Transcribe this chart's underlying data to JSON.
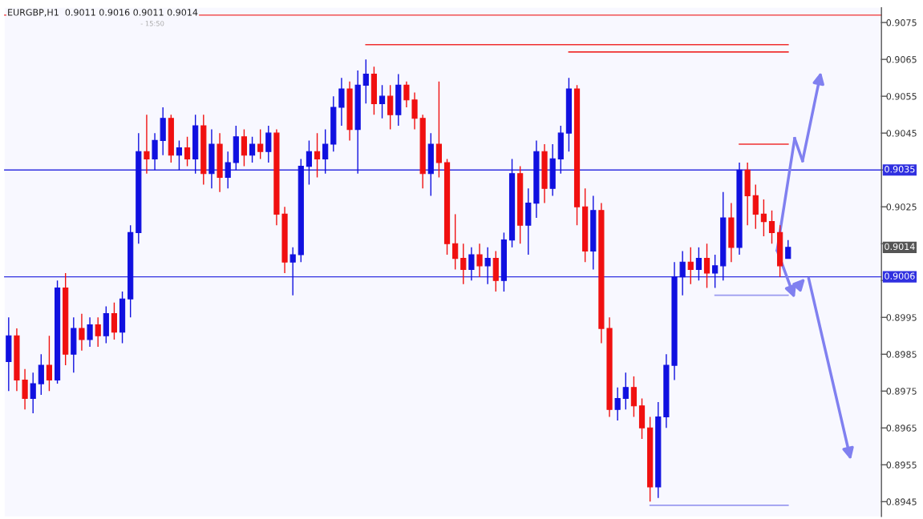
{
  "chart_data": {
    "type": "candlestick",
    "title": "EURGBP,H1  0.9011 0.9016 0.9011 0.9014",
    "categories": [
      null,
      null,
      null,
      null,
      null,
      null,
      null,
      null,
      null,
      null,
      null,
      null,
      null,
      null,
      null,
      null,
      null,
      null,
      null,
      null,
      null,
      null,
      null,
      null,
      null,
      null,
      null,
      null,
      null,
      null,
      null,
      null,
      null,
      null,
      null,
      null,
      null,
      null,
      null,
      null,
      null,
      null,
      null,
      null,
      null,
      null,
      null,
      null,
      null,
      null,
      null,
      null,
      null,
      null,
      null,
      null,
      null,
      null,
      null,
      null,
      null,
      null,
      null,
      null,
      null,
      null,
      null,
      null,
      null,
      null,
      null,
      null,
      null,
      null,
      null,
      null,
      null,
      null,
      null,
      null,
      null,
      null,
      null,
      null,
      null,
      null,
      null,
      null,
      null,
      null,
      null,
      null,
      null,
      null,
      null,
      null,
      null,
      null,
      null,
      null,
      null,
      null,
      null,
      null,
      null,
      null,
      null,
      null
    ],
    "ohlc": [
      [
        0.8983,
        0.8995,
        0.8975,
        0.899
      ],
      [
        0.899,
        0.8992,
        0.8975,
        0.8978
      ],
      [
        0.8978,
        0.8981,
        0.897,
        0.8973
      ],
      [
        0.8973,
        0.898,
        0.8969,
        0.8977
      ],
      [
        0.8977,
        0.8985,
        0.8974,
        0.8982
      ],
      [
        0.8982,
        0.899,
        0.8975,
        0.8978
      ],
      [
        0.8978,
        0.9005,
        0.8977,
        0.9003
      ],
      [
        0.9003,
        0.9007,
        0.8982,
        0.8985
      ],
      [
        0.8985,
        0.8995,
        0.898,
        0.8992
      ],
      [
        0.8992,
        0.8996,
        0.8986,
        0.8989
      ],
      [
        0.8989,
        0.8995,
        0.8987,
        0.8993
      ],
      [
        0.8993,
        0.8995,
        0.8987,
        0.899
      ],
      [
        0.899,
        0.8998,
        0.8988,
        0.8996
      ],
      [
        0.8996,
        0.8999,
        0.8989,
        0.8991
      ],
      [
        0.8991,
        0.9002,
        0.8988,
        0.9
      ],
      [
        0.9,
        0.902,
        0.8995,
        0.9018
      ],
      [
        0.9018,
        0.9045,
        0.9015,
        0.904
      ],
      [
        0.904,
        0.905,
        0.9034,
        0.9038
      ],
      [
        0.9038,
        0.9045,
        0.9035,
        0.9043
      ],
      [
        0.9043,
        0.9052,
        0.9039,
        0.9049
      ],
      [
        0.9049,
        0.905,
        0.9037,
        0.9039
      ],
      [
        0.9039,
        0.9043,
        0.9035,
        0.9041
      ],
      [
        0.9041,
        0.9044,
        0.9036,
        0.9038
      ],
      [
        0.9038,
        0.905,
        0.9034,
        0.9047
      ],
      [
        0.9047,
        0.905,
        0.9031,
        0.9034
      ],
      [
        0.9034,
        0.9046,
        0.903,
        0.9042
      ],
      [
        0.9042,
        0.9045,
        0.9029,
        0.9033
      ],
      [
        0.9033,
        0.904,
        0.903,
        0.9037
      ],
      [
        0.9037,
        0.9047,
        0.9035,
        0.9044
      ],
      [
        0.9044,
        0.9046,
        0.9036,
        0.9039
      ],
      [
        0.9039,
        0.9044,
        0.9037,
        0.9042
      ],
      [
        0.9042,
        0.9046,
        0.9038,
        0.904
      ],
      [
        0.904,
        0.9047,
        0.9037,
        0.9045
      ],
      [
        0.9045,
        0.9046,
        0.902,
        0.9023
      ],
      [
        0.9023,
        0.9025,
        0.9007,
        0.901
      ],
      [
        0.901,
        0.9014,
        0.9001,
        0.9012
      ],
      [
        0.9012,
        0.9038,
        0.901,
        0.9036
      ],
      [
        0.9036,
        0.9043,
        0.9031,
        0.904
      ],
      [
        0.904,
        0.9045,
        0.9033,
        0.9038
      ],
      [
        0.9038,
        0.9046,
        0.9034,
        0.9042
      ],
      [
        0.9042,
        0.9055,
        0.904,
        0.9052
      ],
      [
        0.9052,
        0.906,
        0.9047,
        0.9057
      ],
      [
        0.9057,
        0.9059,
        0.9043,
        0.9046
      ],
      [
        0.9046,
        0.9062,
        0.9034,
        0.9058
      ],
      [
        0.9058,
        0.9065,
        0.9053,
        0.9061
      ],
      [
        0.9061,
        0.9063,
        0.905,
        0.9053
      ],
      [
        0.9053,
        0.9058,
        0.9049,
        0.9055
      ],
      [
        0.9055,
        0.9058,
        0.9046,
        0.905
      ],
      [
        0.905,
        0.9061,
        0.9047,
        0.9058
      ],
      [
        0.9058,
        0.9059,
        0.9052,
        0.9054
      ],
      [
        0.9054,
        0.9056,
        0.9046,
        0.9049
      ],
      [
        0.9049,
        0.905,
        0.903,
        0.9034
      ],
      [
        0.9034,
        0.9045,
        0.9028,
        0.9042
      ],
      [
        0.9042,
        0.9059,
        0.9033,
        0.9037
      ],
      [
        0.9037,
        0.9038,
        0.9012,
        0.9015
      ],
      [
        0.9015,
        0.9023,
        0.9008,
        0.9011
      ],
      [
        0.9011,
        0.9015,
        0.9004,
        0.9008
      ],
      [
        0.9008,
        0.9014,
        0.9005,
        0.9012
      ],
      [
        0.9012,
        0.9015,
        0.9006,
        0.9009
      ],
      [
        0.9009,
        0.9014,
        0.9004,
        0.9011
      ],
      [
        0.9011,
        0.9013,
        0.9002,
        0.9005
      ],
      [
        0.9005,
        0.9018,
        0.9002,
        0.9016
      ],
      [
        0.9016,
        0.9038,
        0.9014,
        0.9034
      ],
      [
        0.9034,
        0.9036,
        0.9015,
        0.902
      ],
      [
        0.902,
        0.903,
        0.9012,
        0.9026
      ],
      [
        0.9026,
        0.9043,
        0.9022,
        0.904
      ],
      [
        0.904,
        0.9042,
        0.9026,
        0.903
      ],
      [
        0.903,
        0.9042,
        0.9028,
        0.9038
      ],
      [
        0.9038,
        0.9047,
        0.9034,
        0.9045
      ],
      [
        0.9045,
        0.906,
        0.904,
        0.9057
      ],
      [
        0.9057,
        0.9058,
        0.902,
        0.9025
      ],
      [
        0.9025,
        0.903,
        0.901,
        0.9013
      ],
      [
        0.9013,
        0.9028,
        0.9008,
        0.9024
      ],
      [
        0.9024,
        0.9026,
        0.8988,
        0.8992
      ],
      [
        0.8992,
        0.8995,
        0.8968,
        0.897
      ],
      [
        0.897,
        0.8976,
        0.8967,
        0.8973
      ],
      [
        0.8973,
        0.898,
        0.897,
        0.8976
      ],
      [
        0.8976,
        0.8979,
        0.8968,
        0.8971
      ],
      [
        0.8971,
        0.8973,
        0.8962,
        0.8965
      ],
      [
        0.8965,
        0.8968,
        0.8945,
        0.8949
      ],
      [
        0.8949,
        0.8972,
        0.8946,
        0.8968
      ],
      [
        0.8968,
        0.8985,
        0.8965,
        0.8982
      ],
      [
        0.8982,
        0.901,
        0.8978,
        0.9006
      ],
      [
        0.9006,
        0.9013,
        0.9001,
        0.901
      ],
      [
        0.901,
        0.9014,
        0.9004,
        0.9008
      ],
      [
        0.9008,
        0.9014,
        0.9005,
        0.9011
      ],
      [
        0.9011,
        0.9015,
        0.9003,
        0.9007
      ],
      [
        0.9007,
        0.9012,
        0.9003,
        0.9009
      ],
      [
        0.9009,
        0.9029,
        0.9005,
        0.9022
      ],
      [
        0.9022,
        0.9026,
        0.901,
        0.9014
      ],
      [
        0.9014,
        0.9037,
        0.9012,
        0.9035
      ],
      [
        0.9035,
        0.9037,
        0.902,
        0.9028
      ],
      [
        0.9028,
        0.9031,
        0.9019,
        0.9023
      ],
      [
        0.9023,
        0.9027,
        0.9017,
        0.9021
      ],
      [
        0.9021,
        0.9024,
        0.9015,
        0.9018
      ],
      [
        0.9018,
        0.902,
        0.9006,
        0.9009
      ],
      [
        0.9011,
        0.9016,
        0.9011,
        0.9014
      ],
      null,
      null,
      null,
      null,
      null,
      null,
      null,
      null,
      null,
      null,
      null
    ],
    "colors": [
      "#1010e0",
      "#f01010",
      "#f01010",
      "#1010e0",
      "#1010e0",
      "#f01010",
      "#1010e0",
      "#f01010",
      "#1010e0",
      "#f01010",
      "#1010e0",
      "#f01010",
      "#1010e0",
      "#f01010",
      "#1010e0",
      "#1010e0",
      "#1010e0",
      "#f01010",
      "#1010e0",
      "#1010e0",
      "#f01010",
      "#1010e0",
      "#f01010",
      "#1010e0",
      "#f01010",
      "#1010e0",
      "#f01010",
      "#1010e0",
      "#1010e0",
      "#f01010",
      "#1010e0",
      "#f01010",
      "#1010e0",
      "#f01010",
      "#f01010",
      "#1010e0",
      "#1010e0",
      "#1010e0",
      "#f01010",
      "#1010e0",
      "#1010e0",
      "#1010e0",
      "#f01010",
      "#1010e0",
      "#1010e0",
      "#f01010",
      "#1010e0",
      "#f01010",
      "#1010e0",
      "#f01010",
      "#f01010",
      "#f01010",
      "#1010e0",
      "#f01010",
      "#f01010",
      "#f01010",
      "#f01010",
      "#1010e0",
      "#f01010",
      "#1010e0",
      "#f01010",
      "#1010e0",
      "#1010e0",
      "#f01010",
      "#1010e0",
      "#1010e0",
      "#f01010",
      "#1010e0",
      "#1010e0",
      "#1010e0",
      "#f01010",
      "#f01010",
      "#1010e0",
      "#f01010",
      "#f01010",
      "#1010e0",
      "#1010e0",
      "#f01010",
      "#f01010",
      "#f01010",
      "#1010e0",
      "#1010e0",
      "#1010e0",
      "#1010e0",
      "#f01010",
      "#1010e0",
      "#f01010",
      "#1010e0",
      "#1010e0",
      "#f01010",
      "#1010e0",
      "#f01010",
      "#f01010",
      "#f01010",
      "#f01010",
      "#f01010",
      "#1010e0",
      null,
      null,
      null,
      null,
      null,
      null,
      null,
      null,
      null,
      null,
      null
    ],
    "series": [
      {
        "type": "line",
        "color": "#f03030",
        "values": [
          null,
          null,
          null,
          null,
          null,
          null,
          null,
          null,
          null,
          null,
          null,
          null,
          null,
          null,
          null,
          null,
          null,
          null,
          null,
          null,
          null,
          null,
          null,
          null,
          null,
          null,
          null,
          null,
          null,
          null,
          null,
          null,
          null,
          null,
          null,
          null,
          null,
          null,
          null,
          null,
          null,
          null,
          null,
          null,
          0.9069,
          0.9069,
          0.9069,
          0.9069,
          0.9069,
          0.9069,
          0.9069,
          0.9069,
          0.9069,
          0.9069,
          0.9069,
          0.9069,
          0.9069,
          0.9069,
          0.9069,
          0.9069,
          0.9069,
          0.9069,
          0.9069,
          0.9069,
          0.9069,
          0.9069,
          0.9069,
          0.9069,
          0.9069,
          0.9069,
          0.9069,
          0.9069,
          0.9069,
          0.9069,
          0.9069,
          0.9069,
          0.9069,
          0.9069,
          0.9069,
          0.9069,
          0.9069,
          0.9069,
          0.9069,
          0.9069,
          0.9069,
          0.9069,
          0.9069,
          0.9069,
          0.9069,
          0.9069,
          0.9069,
          0.9069,
          0.9069,
          0.9069,
          0.9069,
          0.9069,
          0.9069,
          null,
          null,
          null,
          null,
          null,
          null,
          null,
          null,
          null,
          null,
          null
        ]
      },
      {
        "type": "line",
        "color": "#f03030",
        "values": [
          null,
          null,
          null,
          null,
          null,
          null,
          null,
          null,
          null,
          null,
          null,
          null,
          null,
          null,
          null,
          null,
          null,
          null,
          null,
          null,
          null,
          null,
          null,
          null,
          null,
          null,
          null,
          null,
          null,
          null,
          null,
          null,
          null,
          null,
          null,
          null,
          null,
          null,
          null,
          null,
          null,
          null,
          null,
          null,
          null,
          null,
          null,
          null,
          null,
          null,
          null,
          null,
          null,
          null,
          null,
          null,
          null,
          null,
          null,
          null,
          null,
          null,
          null,
          null,
          null,
          null,
          null,
          null,
          null,
          0.9067,
          0.9067,
          0.9067,
          0.9067,
          0.9067,
          0.9067,
          0.9067,
          0.9067,
          0.9067,
          0.9067,
          0.9067,
          0.9067,
          0.9067,
          0.9067,
          0.9067,
          0.9067,
          0.9067,
          0.9067,
          0.9067,
          0.9067,
          0.9067,
          0.9067,
          0.9067,
          0.9067,
          0.9067,
          0.9067,
          0.9067,
          0.9067,
          null,
          null,
          null,
          null,
          null,
          null,
          null,
          null,
          null,
          null,
          null
        ]
      },
      {
        "type": "line",
        "color": "#f03030",
        "values": [
          null,
          null,
          null,
          null,
          null,
          null,
          null,
          null,
          null,
          null,
          null,
          null,
          null,
          null,
          null,
          null,
          null,
          null,
          null,
          null,
          null,
          null,
          null,
          null,
          null,
          null,
          null,
          null,
          null,
          null,
          null,
          null,
          null,
          null,
          null,
          null,
          null,
          null,
          null,
          null,
          null,
          null,
          null,
          null,
          null,
          null,
          null,
          null,
          null,
          null,
          null,
          null,
          null,
          null,
          null,
          null,
          null,
          null,
          null,
          null,
          null,
          null,
          null,
          null,
          null,
          null,
          null,
          null,
          null,
          null,
          null,
          null,
          null,
          null,
          null,
          null,
          null,
          null,
          null,
          null,
          null,
          null,
          null,
          null,
          null,
          null,
          null,
          null,
          null,
          null,
          0.9042,
          0.9042,
          0.9042,
          0.9042,
          0.9042,
          0.9042,
          0.9042,
          null,
          null,
          null,
          null,
          null,
          null,
          null,
          null,
          null,
          null,
          null
        ]
      },
      {
        "type": "line",
        "color": "#9a9af0",
        "values": [
          null,
          null,
          null,
          null,
          null,
          null,
          null,
          null,
          null,
          null,
          null,
          null,
          null,
          null,
          null,
          null,
          null,
          null,
          null,
          null,
          null,
          null,
          null,
          null,
          null,
          null,
          null,
          null,
          null,
          null,
          null,
          null,
          null,
          null,
          null,
          null,
          null,
          null,
          null,
          null,
          null,
          null,
          null,
          null,
          null,
          null,
          null,
          null,
          null,
          null,
          null,
          null,
          null,
          null,
          null,
          null,
          null,
          null,
          null,
          null,
          null,
          null,
          null,
          null,
          null,
          null,
          null,
          null,
          null,
          null,
          null,
          null,
          null,
          null,
          null,
          null,
          null,
          null,
          null,
          null,
          null,
          null,
          null,
          null,
          null,
          null,
          null,
          0.9001,
          0.9001,
          0.9001,
          0.9001,
          0.9001,
          0.9001,
          0.9001,
          0.9001,
          0.9001,
          0.9001,
          null,
          null,
          null,
          null,
          null,
          null,
          null,
          null,
          null,
          null,
          null
        ]
      },
      {
        "type": "line",
        "color": "#9a9af0",
        "values": [
          null,
          null,
          null,
          null,
          null,
          null,
          null,
          null,
          null,
          null,
          null,
          null,
          null,
          null,
          null,
          null,
          null,
          null,
          null,
          null,
          null,
          null,
          null,
          null,
          null,
          null,
          null,
          null,
          null,
          null,
          null,
          null,
          null,
          null,
          null,
          null,
          null,
          null,
          null,
          null,
          null,
          null,
          null,
          null,
          null,
          null,
          null,
          null,
          null,
          null,
          null,
          null,
          null,
          null,
          null,
          null,
          null,
          null,
          null,
          null,
          null,
          null,
          null,
          null,
          null,
          null,
          null,
          null,
          null,
          null,
          null,
          null,
          null,
          null,
          null,
          null,
          null,
          null,
          null,
          0.8944,
          0.8944,
          0.8944,
          0.8944,
          0.8944,
          0.8944,
          0.8944,
          0.8944,
          0.8944,
          0.8944,
          0.8944,
          0.8944,
          0.8944,
          0.8944,
          0.8944,
          0.8944,
          0.8944,
          0.8944,
          null,
          null,
          null,
          null,
          null,
          null,
          null,
          null,
          null,
          null,
          null
        ]
      }
    ],
    "ref_lines": [
      {
        "axis": "y",
        "value": 0.9077,
        "label": null,
        "color": "#f03030"
      },
      {
        "axis": "y",
        "value": 0.9035,
        "label": "0.9035",
        "color": "#3030e0"
      },
      {
        "axis": "y",
        "value": 0.9006,
        "label": "0.9006",
        "color": "#3030e0"
      }
    ],
    "annotations": [
      "- 15:50",
      {
        "text": "0.9014",
        "y": 0.9014
      }
    ],
    "ylim": [
      0.8941,
      0.9079
    ],
    "yticks": [
      0.8945,
      0.8955,
      0.8965,
      0.8975,
      0.8985,
      0.8995,
      {
        "value": 0.9005,
        "label": null
      },
      {
        "value": 0.9015,
        "label": null
      },
      0.9025,
      0.9035,
      0.9045,
      0.9055,
      0.9065,
      0.9075
    ],
    "grid": false,
    "legend": false
  }
}
